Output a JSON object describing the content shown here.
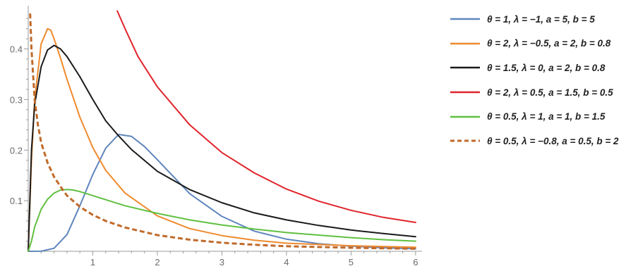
{
  "chart_data": {
    "type": "line",
    "title": "",
    "xlabel": "",
    "ylabel": "",
    "xlim": [
      0,
      6.1
    ],
    "ylim": [
      0,
      0.48
    ],
    "x_ticks": [
      1,
      2,
      3,
      4,
      5,
      6
    ],
    "y_ticks": [
      0.1,
      0.2,
      0.3,
      0.4
    ],
    "x_tick_labels": [
      "1",
      "2",
      "3",
      "4",
      "5",
      "6"
    ],
    "y_tick_labels": [
      "0.1",
      "0.2",
      "0.3",
      "0.4"
    ],
    "grid": false,
    "legend_position": "right",
    "series": [
      {
        "name": "θ = 1, λ = −1, a = 5, b = 5",
        "color": "#5f86bd",
        "dash": "solid",
        "points": [
          [
            0,
            0
          ],
          [
            0.2,
            0.0001
          ],
          [
            0.4,
            0.006
          ],
          [
            0.6,
            0.033
          ],
          [
            0.8,
            0.09
          ],
          [
            1.0,
            0.152
          ],
          [
            1.2,
            0.204
          ],
          [
            1.4,
            0.231
          ],
          [
            1.6,
            0.227
          ],
          [
            1.8,
            0.207
          ],
          [
            2.0,
            0.181
          ],
          [
            2.5,
            0.114
          ],
          [
            3.0,
            0.069
          ],
          [
            3.5,
            0.04
          ],
          [
            4.0,
            0.024
          ],
          [
            4.5,
            0.015
          ],
          [
            5.0,
            0.01
          ],
          [
            5.5,
            0.007
          ],
          [
            6.0,
            0.005
          ]
        ]
      },
      {
        "name": "θ = 2, λ = −0.5, a = 2, b = 0.8",
        "color": "#ef8a2e",
        "dash": "solid",
        "points": [
          [
            0,
            0
          ],
          [
            0.05,
            0.18
          ],
          [
            0.1,
            0.3
          ],
          [
            0.2,
            0.41
          ],
          [
            0.3,
            0.44
          ],
          [
            0.35,
            0.437
          ],
          [
            0.4,
            0.42
          ],
          [
            0.5,
            0.382
          ],
          [
            0.6,
            0.34
          ],
          [
            0.8,
            0.265
          ],
          [
            1.0,
            0.205
          ],
          [
            1.2,
            0.16
          ],
          [
            1.5,
            0.115
          ],
          [
            2.0,
            0.07
          ],
          [
            2.5,
            0.045
          ],
          [
            3.0,
            0.031
          ],
          [
            3.5,
            0.022
          ],
          [
            4.0,
            0.016
          ],
          [
            5.0,
            0.011
          ],
          [
            6.0,
            0.008
          ]
        ]
      },
      {
        "name": "θ = 1.5, λ = 0, a = 2, b = 0.8",
        "color": "#1a1a1a",
        "dash": "solid",
        "points": [
          [
            0,
            0
          ],
          [
            0.05,
            0.2
          ],
          [
            0.1,
            0.29
          ],
          [
            0.2,
            0.365
          ],
          [
            0.3,
            0.398
          ],
          [
            0.4,
            0.407
          ],
          [
            0.5,
            0.4
          ],
          [
            0.6,
            0.385
          ],
          [
            0.8,
            0.345
          ],
          [
            1.0,
            0.3
          ],
          [
            1.2,
            0.258
          ],
          [
            1.4,
            0.228
          ],
          [
            1.6,
            0.201
          ],
          [
            2.0,
            0.158
          ],
          [
            2.5,
            0.122
          ],
          [
            3.0,
            0.096
          ],
          [
            3.5,
            0.076
          ],
          [
            4.0,
            0.062
          ],
          [
            4.5,
            0.051
          ],
          [
            5.0,
            0.042
          ],
          [
            5.5,
            0.035
          ],
          [
            6.0,
            0.029
          ]
        ]
      },
      {
        "name": "θ = 2, λ = 0.5, a = 1.5, b = 0.5",
        "color": "#e0242b",
        "dash": "solid",
        "points": [
          [
            1.38,
            0.475
          ],
          [
            1.5,
            0.44
          ],
          [
            1.7,
            0.385
          ],
          [
            2.0,
            0.325
          ],
          [
            2.5,
            0.25
          ],
          [
            3.0,
            0.195
          ],
          [
            3.5,
            0.155
          ],
          [
            4.0,
            0.123
          ],
          [
            4.5,
            0.099
          ],
          [
            5.0,
            0.081
          ],
          [
            5.5,
            0.067
          ],
          [
            6.0,
            0.057
          ]
        ]
      },
      {
        "name": "θ = 0.5, λ = 1, a = 1, b = 1.5",
        "color": "#5fc040",
        "dash": "solid",
        "points": [
          [
            0,
            0
          ],
          [
            0.05,
            0.02
          ],
          [
            0.1,
            0.048
          ],
          [
            0.2,
            0.083
          ],
          [
            0.3,
            0.103
          ],
          [
            0.4,
            0.115
          ],
          [
            0.5,
            0.121
          ],
          [
            0.6,
            0.122
          ],
          [
            0.7,
            0.121
          ],
          [
            0.8,
            0.118
          ],
          [
            1.0,
            0.11
          ],
          [
            1.5,
            0.09
          ],
          [
            2.0,
            0.075
          ],
          [
            2.5,
            0.062
          ],
          [
            3.0,
            0.052
          ],
          [
            3.5,
            0.044
          ],
          [
            4.0,
            0.037
          ],
          [
            4.5,
            0.032
          ],
          [
            5.0,
            0.027
          ],
          [
            5.5,
            0.023
          ],
          [
            6.0,
            0.02
          ]
        ]
      },
      {
        "name": "θ = 0.5, λ = −0.8, a = 0.5, b = 2",
        "color": "#c06a2b",
        "dash": "dashed",
        "points": [
          [
            0.03,
            0.47
          ],
          [
            0.05,
            0.4
          ],
          [
            0.1,
            0.3
          ],
          [
            0.15,
            0.25
          ],
          [
            0.2,
            0.215
          ],
          [
            0.3,
            0.175
          ],
          [
            0.4,
            0.147
          ],
          [
            0.5,
            0.128
          ],
          [
            0.6,
            0.11
          ],
          [
            0.8,
            0.088
          ],
          [
            1.0,
            0.072
          ],
          [
            1.2,
            0.06
          ],
          [
            1.5,
            0.047
          ],
          [
            2.0,
            0.032
          ],
          [
            2.5,
            0.023
          ],
          [
            3.0,
            0.017
          ],
          [
            3.5,
            0.013
          ],
          [
            4.0,
            0.01
          ],
          [
            5.0,
            0.007
          ],
          [
            6.0,
            0.005
          ]
        ]
      }
    ]
  }
}
